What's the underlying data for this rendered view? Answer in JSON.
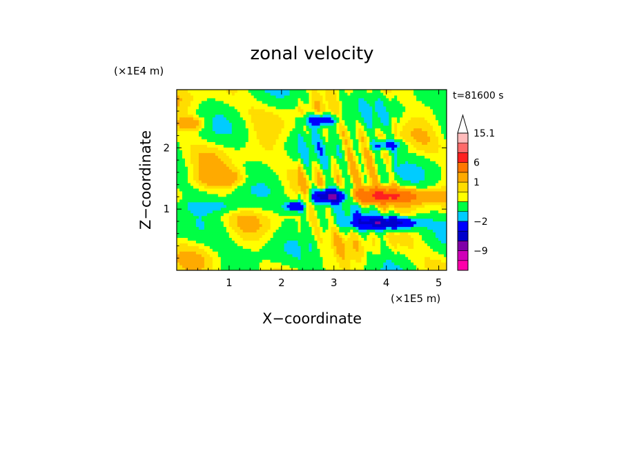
{
  "chart_data": {
    "type": "heatmap",
    "title": "zonal velocity",
    "xlabel": "X−coordinate",
    "ylabel": "Z−coordinate",
    "x_scale_note": "(×1E5 m)",
    "y_scale_note": "(×1E4 m)",
    "time_label": "t=81600 s",
    "xlim": [
      0,
      5.15
    ],
    "ylim": [
      0,
      2.95
    ],
    "x_ticks": [
      1,
      2,
      3,
      4,
      5
    ],
    "y_ticks": [
      1,
      2
    ],
    "colorbar": {
      "labels": [
        {
          "value": 15.1,
          "text": "15.1"
        },
        {
          "value": 6,
          "text": "6"
        },
        {
          "value": 1,
          "text": "1"
        },
        {
          "value": -2,
          "text": "−2"
        },
        {
          "value": -9,
          "text": "−9"
        }
      ],
      "levels": [
        {
          "color": "#ff00aa",
          "from": -18,
          "to": -12
        },
        {
          "color": "#d000b8",
          "from": -12,
          "to": -9
        },
        {
          "color": "#8000a8",
          "from": -9,
          "to": -6
        },
        {
          "color": "#0000cc",
          "from": -6,
          "to": -4
        },
        {
          "color": "#0000ff",
          "from": -4,
          "to": -2
        },
        {
          "color": "#00ccff",
          "from": -2,
          "to": -1
        },
        {
          "color": "#00ff44",
          "from": -1,
          "to": 0
        },
        {
          "color": "#ffff00",
          "from": 0,
          "to": 0.5
        },
        {
          "color": "#ffdd00",
          "from": 0.5,
          "to": 1
        },
        {
          "color": "#ffaa00",
          "from": 1,
          "to": 3
        },
        {
          "color": "#ff7700",
          "from": 3,
          "to": 6
        },
        {
          "color": "#ff2020",
          "from": 6,
          "to": 9
        },
        {
          "color": "#ff6a6a",
          "from": 9,
          "to": 12
        },
        {
          "color": "#ffbbbb",
          "from": 12,
          "to": 15.1
        }
      ],
      "extend_max_color": "#ffffff"
    },
    "field_features": [
      {
        "name": "upper easterly jet",
        "x_center": 3.9,
        "z_center": 1.22,
        "x_halfwidth": 0.75,
        "z_halfwidth": 0.12,
        "value": 7
      },
      {
        "name": "upper westerly core",
        "x_center": 2.95,
        "z_center": 1.22,
        "x_halfwidth": 0.35,
        "z_halfwidth": 0.11,
        "value": -8
      },
      {
        "name": "lower westerly band",
        "x_center": 4.0,
        "z_center": 0.78,
        "x_halfwidth": 0.6,
        "z_halfwidth": 0.1,
        "value": -6
      },
      {
        "name": "left westerly lobe",
        "x_center": 2.25,
        "z_center": 1.05,
        "x_halfwidth": 0.2,
        "z_halfwidth": 0.08,
        "value": -4
      },
      {
        "name": "upper-level blue streak",
        "x_center": 2.75,
        "z_center": 2.45,
        "x_halfwidth": 0.3,
        "z_halfwidth": 0.1,
        "value": -4
      },
      {
        "name": "upper-right blue streak",
        "x_center": 4.0,
        "z_center": 2.05,
        "x_halfwidth": 0.3,
        "z_halfwidth": 0.08,
        "value": -3
      },
      {
        "name": "left positive lobe",
        "x_center": 0.9,
        "z_center": 1.5,
        "x_halfwidth": 0.5,
        "z_halfwidth": 0.15,
        "value": 2
      },
      {
        "name": "top-left positive patch",
        "x_center": 0.3,
        "z_center": 2.4,
        "x_halfwidth": 0.3,
        "z_halfwidth": 0.12,
        "value": 2
      },
      {
        "name": "mid-left negative band",
        "x_center": 0.7,
        "z_center": 1.05,
        "x_halfwidth": 0.6,
        "z_halfwidth": 0.1,
        "value": -1.5
      }
    ]
  }
}
